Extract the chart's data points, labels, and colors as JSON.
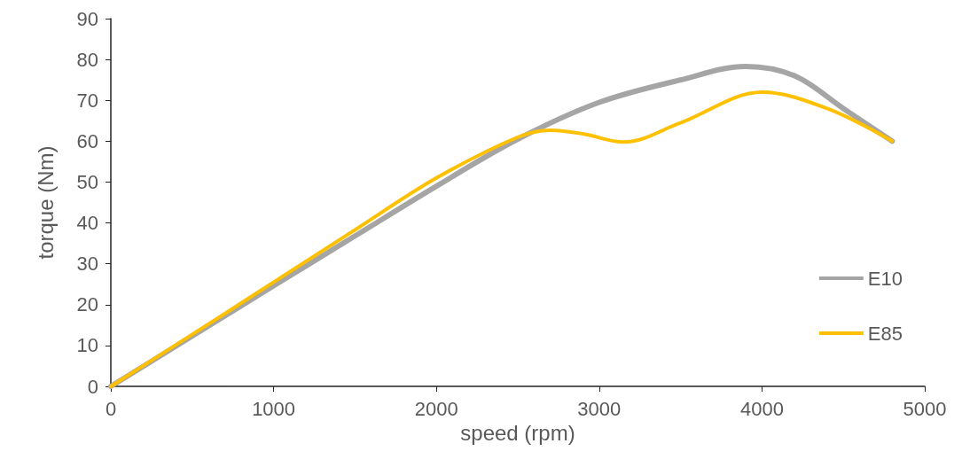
{
  "chart_data": {
    "type": "line",
    "xlabel": "speed (rpm)",
    "ylabel": "torque (Nm)",
    "xlim": [
      0,
      5000
    ],
    "xticks": [
      0,
      1000,
      2000,
      3000,
      4000,
      5000
    ],
    "ylim": [
      0,
      90
    ],
    "yticks": [
      0,
      10,
      20,
      30,
      40,
      50,
      60,
      70,
      80,
      90
    ],
    "grid": false,
    "legend": "bottom right",
    "marker": "none",
    "line_style": "solid",
    "series": [
      {
        "name": "E10",
        "color": "#a5a5a5",
        "x": [
          0,
          500,
          1000,
          1500,
          2000,
          2500,
          3000,
          3500,
          3900,
          4200,
          4500,
          4800
        ],
        "values": [
          0,
          12.3,
          24.6,
          36.8,
          49,
          60.5,
          69.5,
          75,
          78.3,
          76,
          68,
          60
        ]
      },
      {
        "name": "E85",
        "color": "#ffc000",
        "x": [
          0,
          500,
          1000,
          1500,
          2000,
          2500,
          2700,
          2900,
          3150,
          3500,
          4000,
          4400,
          4800
        ],
        "values": [
          0,
          12.7,
          25.5,
          38.3,
          51,
          61,
          62.7,
          61.8,
          59.8,
          64.5,
          72,
          68,
          60
        ]
      }
    ]
  }
}
